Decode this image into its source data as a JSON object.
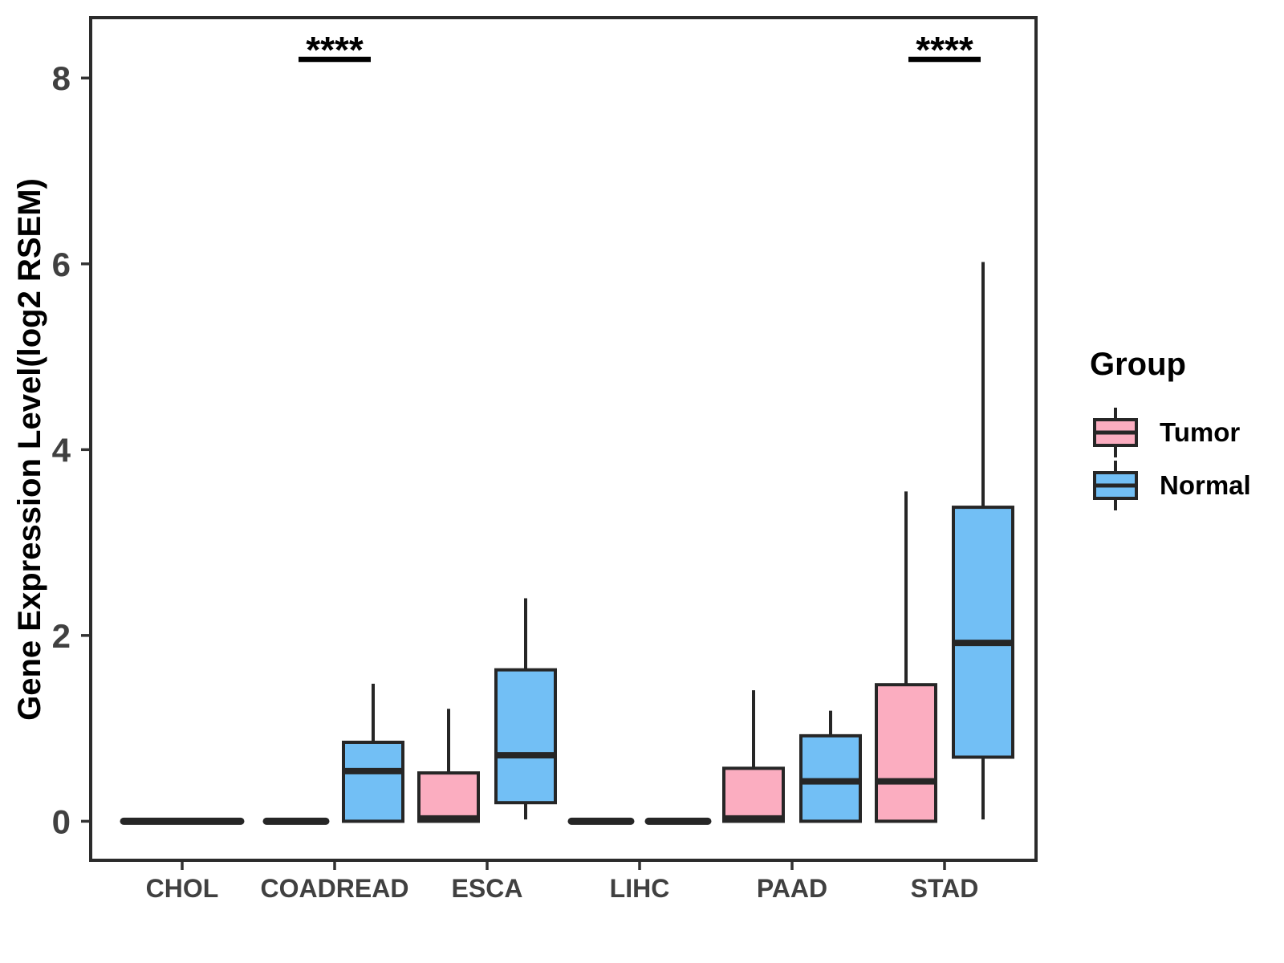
{
  "chart_data": {
    "type": "boxplot",
    "title": "",
    "xlabel": "",
    "ylabel": "Gene Expression Level(log2 RSEM)",
    "categories": [
      "CHOL",
      "COADREAD",
      "ESCA",
      "LIHC",
      "PAAD",
      "STAD"
    ],
    "groups": [
      "Tumor",
      "Normal"
    ],
    "y_ticks": [
      0,
      2,
      4,
      6,
      8
    ],
    "ylim": [
      -0.42,
      8.65
    ],
    "grid": false,
    "legend": {
      "title": "Group",
      "position": "right",
      "entries": [
        {
          "label": "Tumor",
          "color": "#FBADC0"
        },
        {
          "label": "Normal",
          "color": "#72BFF5"
        }
      ]
    },
    "colors": {
      "box_stroke": "#262626",
      "axis_text": "#404040",
      "panel_border": "#2B2B2B",
      "significance": "#000000"
    },
    "significance": [
      {
        "category": "COADREAD",
        "label": "****"
      },
      {
        "category": "STAD",
        "label": "****"
      }
    ],
    "boxes": [
      {
        "category": "CHOL",
        "group": "Tumor",
        "collapsed": true,
        "full_width": true,
        "q1": 0,
        "median": 0,
        "q3": 0,
        "whisker_low": 0,
        "whisker_high": 0
      },
      {
        "category": "COADREAD",
        "group": "Tumor",
        "collapsed": true,
        "q1": 0,
        "median": 0,
        "q3": 0,
        "whisker_low": 0,
        "whisker_high": 0
      },
      {
        "category": "COADREAD",
        "group": "Normal",
        "q1": 0,
        "median": 0.54,
        "q3": 0.85,
        "whisker_low": 0,
        "whisker_high": 1.48
      },
      {
        "category": "ESCA",
        "group": "Tumor",
        "q1": 0,
        "median": 0.03,
        "q3": 0.52,
        "whisker_low": 0,
        "whisker_high": 1.21
      },
      {
        "category": "ESCA",
        "group": "Normal",
        "q1": 0.2,
        "median": 0.71,
        "q3": 1.63,
        "whisker_low": 0.02,
        "whisker_high": 2.4
      },
      {
        "category": "LIHC",
        "group": "Tumor",
        "collapsed": true,
        "q1": 0,
        "median": 0,
        "q3": 0,
        "whisker_low": 0,
        "whisker_high": 0
      },
      {
        "category": "LIHC",
        "group": "Normal",
        "collapsed": true,
        "q1": 0,
        "median": 0,
        "q3": 0,
        "whisker_low": 0,
        "whisker_high": 0
      },
      {
        "category": "PAAD",
        "group": "Tumor",
        "q1": 0,
        "median": 0.03,
        "q3": 0.57,
        "whisker_low": 0,
        "whisker_high": 1.41
      },
      {
        "category": "PAAD",
        "group": "Normal",
        "q1": 0,
        "median": 0.43,
        "q3": 0.92,
        "whisker_low": 0,
        "whisker_high": 1.19
      },
      {
        "category": "STAD",
        "group": "Tumor",
        "q1": 0,
        "median": 0.43,
        "q3": 1.47,
        "whisker_low": 0,
        "whisker_high": 3.55
      },
      {
        "category": "STAD",
        "group": "Normal",
        "q1": 0.69,
        "median": 1.92,
        "q3": 3.38,
        "whisker_low": 0.02,
        "whisker_high": 6.02
      }
    ]
  }
}
